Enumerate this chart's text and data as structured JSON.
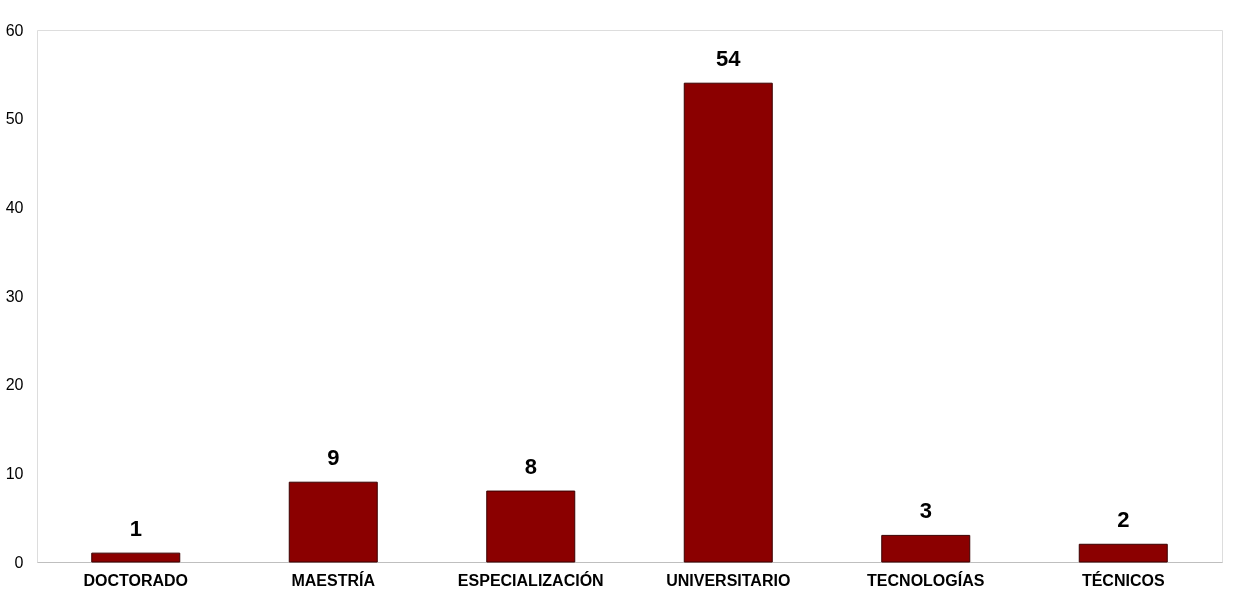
{
  "chart_data": {
    "type": "bar",
    "categories": [
      "DOCTORADO",
      "MAESTRÍA",
      "ESPECIALIZACIÓN",
      "UNIVERSITARIO",
      "TECNOLOGÍAS",
      "TÉCNICOS"
    ],
    "values": [
      1,
      9,
      8,
      54,
      3,
      2
    ],
    "color": "#8b0000",
    "ylim": [
      0,
      60
    ],
    "yticks": [
      0,
      10,
      20,
      30,
      40,
      50,
      60
    ],
    "grid": false,
    "data_labels": true
  }
}
